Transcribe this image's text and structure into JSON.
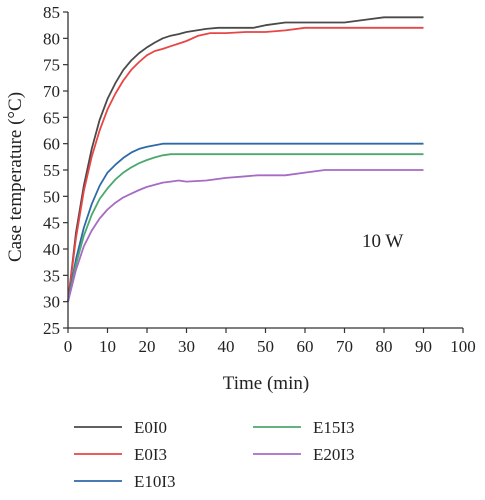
{
  "chart_data": {
    "type": "line",
    "title": "",
    "xlabel": "Time (min)",
    "ylabel": "Case temperature (°C)",
    "xlim": [
      0,
      100
    ],
    "ylim": [
      25,
      85
    ],
    "xticks": [
      0,
      10,
      20,
      30,
      40,
      50,
      60,
      70,
      80,
      90,
      100
    ],
    "yticks": [
      25,
      30,
      35,
      40,
      45,
      50,
      55,
      60,
      65,
      70,
      75,
      80,
      85
    ],
    "grid": false,
    "annotation": "10 W",
    "legend_position": "bottom",
    "series": [
      {
        "name": "E0I0",
        "color": "#4a4a4a",
        "x": [
          0,
          2,
          4,
          6,
          8,
          10,
          12,
          14,
          16,
          18,
          20,
          22,
          24,
          26,
          28,
          30,
          35,
          38,
          40,
          45,
          47,
          50,
          55,
          60,
          70,
          75,
          80,
          85,
          90
        ],
        "y": [
          30,
          43,
          52,
          59,
          64.5,
          68.5,
          71.5,
          74,
          75.8,
          77.2,
          78.3,
          79.2,
          80,
          80.5,
          80.8,
          81.2,
          81.8,
          82,
          82,
          82,
          82,
          82.5,
          83,
          83,
          83,
          83.5,
          84,
          84,
          84
        ]
      },
      {
        "name": "E0I3",
        "color": "#e84545",
        "x": [
          0,
          2,
          4,
          6,
          8,
          10,
          12,
          14,
          16,
          18,
          20,
          22,
          24,
          26,
          28,
          30,
          33,
          36,
          40,
          45,
          50,
          55,
          60,
          70,
          80,
          90
        ],
        "y": [
          30,
          42,
          51,
          57.5,
          62.5,
          66.5,
          69.5,
          72,
          74,
          75.5,
          76.8,
          77.6,
          78,
          78.5,
          79,
          79.5,
          80.5,
          81,
          81,
          81.2,
          81.2,
          81.5,
          82,
          82,
          82,
          82
        ]
      },
      {
        "name": "E10I3",
        "color": "#2f6aa8",
        "x": [
          0,
          2,
          4,
          6,
          8,
          10,
          12,
          14,
          16,
          18,
          20,
          22,
          24,
          26,
          30,
          40,
          50,
          60,
          70,
          80,
          90
        ],
        "y": [
          30,
          38,
          44,
          48.5,
          52,
          54.5,
          56,
          57.3,
          58.3,
          59,
          59.4,
          59.7,
          60,
          60,
          60,
          60,
          60,
          60,
          60,
          60,
          60
        ]
      },
      {
        "name": "E15I3",
        "color": "#4ca86e",
        "x": [
          0,
          2,
          4,
          6,
          8,
          10,
          12,
          14,
          16,
          18,
          20,
          22,
          24,
          26,
          30,
          40,
          50,
          60,
          70,
          80,
          90
        ],
        "y": [
          30,
          37,
          42.5,
          46.5,
          49.5,
          51.5,
          53.2,
          54.5,
          55.5,
          56.3,
          56.9,
          57.4,
          57.8,
          58,
          58,
          58,
          58,
          58,
          58,
          58,
          58
        ]
      },
      {
        "name": "E20I3",
        "color": "#a46cc4",
        "x": [
          0,
          2,
          4,
          6,
          8,
          10,
          12,
          14,
          16,
          18,
          20,
          22,
          24,
          26,
          28,
          30,
          35,
          40,
          45,
          48,
          55,
          60,
          65,
          70,
          80,
          90
        ],
        "y": [
          30,
          36,
          40.5,
          43.5,
          45.8,
          47.5,
          48.8,
          49.8,
          50.5,
          51.2,
          51.8,
          52.2,
          52.6,
          52.8,
          53,
          52.8,
          53,
          53.5,
          53.8,
          54,
          54,
          54.5,
          55,
          55,
          55,
          55
        ]
      }
    ]
  }
}
